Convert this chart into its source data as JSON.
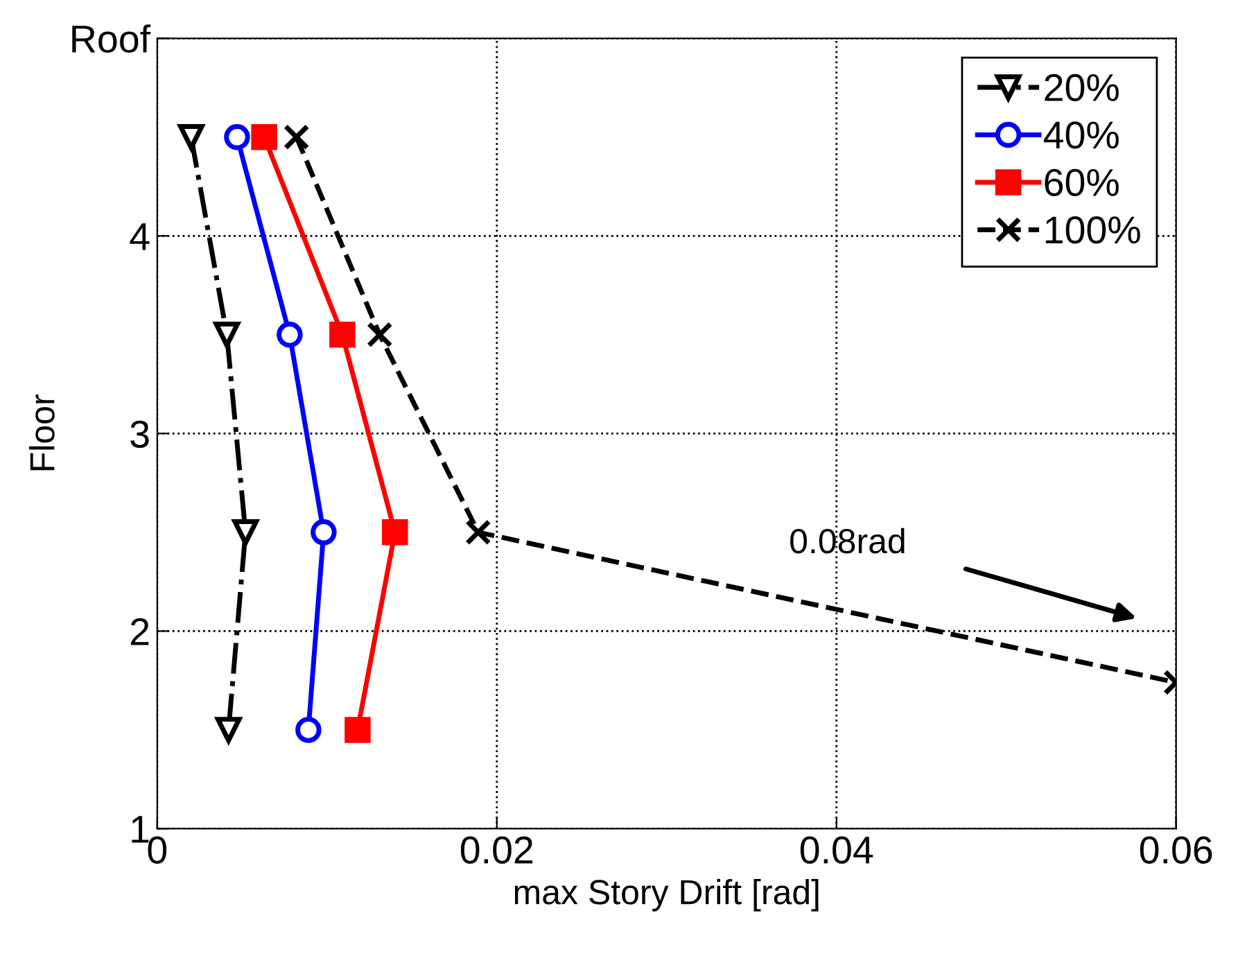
{
  "chart_data": {
    "type": "line",
    "xlabel": "max Story Drift [rad]",
    "ylabel": "Floor",
    "xlim": [
      0,
      0.06
    ],
    "xticks": [
      0,
      0.02,
      0.04,
      0.06
    ],
    "ylim": [
      1,
      5
    ],
    "yticks": [
      1,
      2,
      3,
      4,
      {
        "value": 5,
        "label": "Roof"
      }
    ],
    "grid": true,
    "legend": "top right",
    "series": [
      {
        "name": "20%",
        "color": "#000000",
        "x": [
          0.002,
          0.0041,
          0.0052,
          0.0042
        ],
        "values": [
          4.5,
          3.5,
          2.5,
          1.5
        ],
        "marker": "triangle",
        "line_style": "dashdot"
      },
      {
        "name": "40%",
        "color": "#0000ff",
        "x": [
          0.0047,
          0.0078,
          0.0098,
          0.0089
        ],
        "values": [
          4.5,
          3.5,
          2.5,
          1.5
        ],
        "marker": "circle",
        "line_style": "solid"
      },
      {
        "name": "60%",
        "color": "#ff0000",
        "x": [
          0.0063,
          0.0109,
          0.014,
          0.0118
        ],
        "values": [
          4.5,
          3.5,
          2.5,
          1.5
        ],
        "marker": "square",
        "line_style": "solid"
      },
      {
        "name": "100%",
        "color": "#000000",
        "x": [
          0.0082,
          0.0131,
          0.0189,
          0.06
        ],
        "values": [
          4.5,
          3.5,
          2.5,
          1.74
        ],
        "marker": "cross",
        "line_style": "dashed"
      }
    ],
    "annotations": [
      "0.08rad"
    ]
  }
}
